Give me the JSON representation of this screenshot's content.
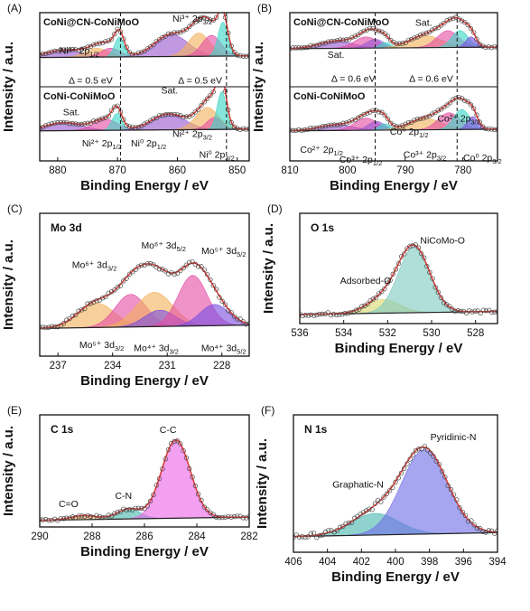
{
  "figure": {
    "ylabel": "Intensity / a.u.",
    "xlabel": "Binding Energy / eV"
  },
  "chart_data": [
    {
      "id": "A",
      "type": "line",
      "panel_label": "(A)",
      "title": "",
      "xlabel": "Binding Energy / eV",
      "ylabel": "Intensity / a.u.",
      "xlim": [
        883,
        848
      ],
      "xticks": [
        880,
        870,
        860,
        850
      ],
      "dashed_x": [
        869.5,
        851.8
      ],
      "subplots": [
        {
          "label": "CoNi@CN-CoNiMoO",
          "baseline": 0.03,
          "noise": 0.018,
          "peaks": [
            {
              "name": "Ni²⁺ 2p1/2 sat",
              "center": 879,
              "height": 0.18,
              "width": 3.0,
              "color": "#9b59d0"
            },
            {
              "name": "Ni³⁺ 2p1/2",
              "center": 873.5,
              "height": 0.22,
              "width": 1.9,
              "color": "#f2b25c"
            },
            {
              "name": "Ni²⁺ 2p1/2",
              "center": 871.2,
              "height": 0.22,
              "width": 1.6,
              "color": "#e34fa4"
            },
            {
              "name": "Ni⁰ 2p1/2",
              "center": 869.7,
              "height": 0.5,
              "width": 0.8,
              "color": "#3dd6c6"
            },
            {
              "name": "Ni²⁺ 2p3/2 sat",
              "center": 861,
              "height": 0.55,
              "width": 2.8,
              "color": "#9b59d0"
            },
            {
              "name": "Ni³⁺ 2p3/2",
              "center": 856.4,
              "height": 0.58,
              "width": 1.8,
              "color": "#f2b25c"
            },
            {
              "name": "Ni²⁺ 2p3/2",
              "center": 854.3,
              "height": 0.52,
              "width": 1.6,
              "color": "#e34fa4"
            },
            {
              "name": "Ni⁰ 2p3/2",
              "center": 852.4,
              "height": 0.85,
              "width": 0.8,
              "color": "#3dd6c6"
            }
          ],
          "annotations": [
            {
              "text": "Ni³⁺ 2p1/2",
              "x": 876.4,
              "y": 0.12
            },
            {
              "text": "Ni³⁺ 2p3/2",
              "x": 857.5,
              "y": 0.92
            },
            {
              "text": "Δ = 0.5 eV",
              "x": 874.5,
              "y": -0.62
            },
            {
              "text": "Δ = 0.5 eV",
              "x": 856.2,
              "y": -0.62
            }
          ]
        },
        {
          "label": "CoNi-CoNiMoO",
          "baseline": 0.05,
          "noise": 0.018,
          "peaks": [
            {
              "name": "Ni²⁺ 2p1/2 sat",
              "center": 879,
              "height": 0.2,
              "width": 3.0,
              "color": "#9b59d0"
            },
            {
              "name": "Ni²⁺ 2p1/2",
              "center": 872,
              "height": 0.28,
              "width": 2.0,
              "color": "#e34fa4"
            },
            {
              "name": "Ni⁰ 2p1/2",
              "center": 870.1,
              "height": 0.42,
              "width": 0.8,
              "color": "#3dd6c6"
            },
            {
              "name": "Ni²⁺ 2p3/2 sat",
              "center": 861.5,
              "height": 0.4,
              "width": 2.8,
              "color": "#9b59d0"
            },
            {
              "name": "Ni²⁺ 2p3/2",
              "center": 855.0,
              "height": 0.55,
              "width": 1.9,
              "color": "#f2b25c"
            },
            {
              "name": "Ni²⁺ 2p3/2 b",
              "center": 853.8,
              "height": 0.3,
              "width": 1.3,
              "color": "#e34fa4"
            },
            {
              "name": "Ni⁰ 2p3/2",
              "center": 852.6,
              "height": 0.95,
              "width": 0.75,
              "color": "#3dd6c6"
            }
          ],
          "annotations": [
            {
              "text": "Sat.",
              "x": 877.7,
              "y": 0.44
            },
            {
              "text": "Sat.",
              "x": 861.3,
              "y": 0.98
            },
            {
              "text": "Ni²⁺ 2p1/2",
              "x": 872.6,
              "y": -0.34
            },
            {
              "text": "Ni⁰ 2p1/2",
              "x": 864.8,
              "y": -0.34
            },
            {
              "text": "Ni²⁺ 2p3/2",
              "x": 857.5,
              "y": -0.1
            },
            {
              "text": "Ni⁰ 2p3/2",
              "x": 853.4,
              "y": -0.62
            }
          ]
        }
      ]
    },
    {
      "id": "B",
      "type": "line",
      "panel_label": "(B)",
      "title": "",
      "xlabel": "Binding Energy / eV",
      "ylabel": "Intensity / a.u.",
      "xlim": [
        810,
        774
      ],
      "xticks": [
        810,
        800,
        790,
        780
      ],
      "dashed_x": [
        795.2,
        781.0
      ],
      "subplots": [
        {
          "label": "CoNi@CN-CoNiMoO",
          "baseline": 0.25,
          "noise": 0.018,
          "peaks": [
            {
              "name": "Sat.",
              "center": 802,
              "height": 0.18,
              "width": 3.0,
              "color": "#9b59d0"
            },
            {
              "name": "Co²⁺ 2p1/2",
              "center": 796.8,
              "height": 0.28,
              "width": 2.0,
              "color": "#e34fa4"
            },
            {
              "name": "Co³⁺ 2p1/2",
              "center": 795.2,
              "height": 0.22,
              "width": 1.5,
              "color": "#9b59d0"
            },
            {
              "name": "Co⁰ 2p1/2",
              "center": 793.4,
              "height": 0.14,
              "width": 0.9,
              "color": "#3dd6c6"
            },
            {
              "name": "Sat.",
              "center": 786.5,
              "height": 0.3,
              "width": 2.8,
              "color": "#f2b25c"
            },
            {
              "name": "Co²⁺ 2p3/2",
              "center": 782.6,
              "height": 0.42,
              "width": 1.9,
              "color": "#e34fa4"
            },
            {
              "name": "Co³⁺ 2p3/2",
              "center": 780.5,
              "height": 0.42,
              "width": 1.4,
              "color": "#3dd6c6"
            },
            {
              "name": "Co⁰ 2p3/2",
              "center": 778.6,
              "height": 0.26,
              "width": 0.9,
              "color": "#7b4fe0"
            }
          ],
          "annotations": [
            {
              "text": "Sat.",
              "x": 802,
              "y": 0.02
            },
            {
              "text": "Sat.",
              "x": 786.8,
              "y": 0.82
            },
            {
              "text": "Δ = 0.6 eV",
              "x": 799,
              "y": -0.58
            },
            {
              "text": "Δ = 0.6 eV",
              "x": 785.5,
              "y": -0.58
            }
          ]
        },
        {
          "label": "CoNi-CoNiMoO",
          "baseline": 0.05,
          "noise": 0.018,
          "peaks": [
            {
              "name": "Sat.",
              "center": 802,
              "height": 0.14,
              "width": 3.0,
              "color": "#9b59d0"
            },
            {
              "name": "Co²⁺ 2p1/2",
              "center": 796.8,
              "height": 0.3,
              "width": 2.0,
              "color": "#e34fa4"
            },
            {
              "name": "Co³⁺ 2p1/2",
              "center": 795.0,
              "height": 0.22,
              "width": 1.4,
              "color": "#9b59d0"
            },
            {
              "name": "Co⁰ 2p1/2",
              "center": 793.6,
              "height": 0.16,
              "width": 0.9,
              "color": "#3dd6c6"
            },
            {
              "name": "Sat.",
              "center": 786.5,
              "height": 0.28,
              "width": 2.8,
              "color": "#f2b25c"
            },
            {
              "name": "Co²⁺ 2p3/2",
              "center": 782.4,
              "height": 0.42,
              "width": 1.9,
              "color": "#e34fa4"
            },
            {
              "name": "Co³⁺ 2p3/2",
              "center": 780.2,
              "height": 0.5,
              "width": 1.4,
              "color": "#3dd6c6"
            },
            {
              "name": "Co⁰ 2p3/2",
              "center": 778.3,
              "height": 0.32,
              "width": 0.9,
              "color": "#7b4fe0"
            }
          ],
          "annotations": [
            {
              "text": "Co²⁺ 2p1/2",
              "x": 804.5,
              "y": -0.5
            },
            {
              "text": "Co³⁺ 2p1/2",
              "x": 797.7,
              "y": -0.75
            },
            {
              "text": "Co⁰ 2p1/2",
              "x": 789.3,
              "y": -0.05
            },
            {
              "text": "Co³⁺ 2p3/2",
              "x": 786.6,
              "y": -0.62
            },
            {
              "text": "Co²⁺ 2p3/2",
              "x": 780.7,
              "y": 0.28
            },
            {
              "text": "Co⁰ 2p3/2",
              "x": 776.6,
              "y": -0.7
            }
          ]
        }
      ]
    },
    {
      "id": "C",
      "type": "line",
      "panel_label": "(C)",
      "title": "Mo 3d",
      "xlabel": "Binding Energy / eV",
      "ylabel": "Intensity / a.u.",
      "xlim": [
        238,
        226.5
      ],
      "xticks": [
        237,
        234,
        231,
        228
      ],
      "ylim": [
        -0.3,
        1.45
      ],
      "baseline": 0.04,
      "noise": 0.02,
      "peaks": [
        {
          "name": "Mo⁶⁺ 3d3/2",
          "center": 234.9,
          "height": 0.3,
          "width": 1.0,
          "color": "#f2b25c"
        },
        {
          "name": "Mo⁵⁺ 3d3/2",
          "center": 233.0,
          "height": 0.4,
          "width": 0.85,
          "color": "#e34fa4"
        },
        {
          "name": "Mo⁶⁺ 3d5/2",
          "center": 231.7,
          "height": 0.42,
          "width": 1.0,
          "color": "#f2b25c"
        },
        {
          "name": "Mo⁴⁺ 3d3/2",
          "center": 231.4,
          "height": 0.2,
          "width": 0.85,
          "color": "#7b4fe0"
        },
        {
          "name": "Mo⁵⁺ 3d5/2",
          "center": 229.6,
          "height": 0.62,
          "width": 0.8,
          "color": "#e34fa4"
        },
        {
          "name": "Mo⁴⁺ 3d5/2",
          "center": 228.4,
          "height": 0.26,
          "width": 0.8,
          "color": "#7b4fe0"
        }
      ],
      "annotations": [
        {
          "text": "Mo⁶⁺ 3d3/2",
          "x": 235.0,
          "y": 0.78
        },
        {
          "text": "Mo⁶⁺ 3d5/2",
          "x": 231.2,
          "y": 1.02
        },
        {
          "text": "Mo⁵⁺ 3d5/2",
          "x": 227.9,
          "y": 0.95
        },
        {
          "text": "Mo⁵⁺ 3d3/2",
          "x": 234.6,
          "y": -0.2
        },
        {
          "text": "Mo⁴⁺ 3d3/2",
          "x": 231.6,
          "y": -0.24
        },
        {
          "text": "Mo⁴⁺ 3d5/2",
          "x": 227.9,
          "y": -0.24
        }
      ]
    },
    {
      "id": "D",
      "type": "line",
      "panel_label": "(D)",
      "title": "O 1s",
      "xlabel": "Binding Energy / eV",
      "ylabel": "Intensity / a.u.",
      "xlim": [
        536,
        527
      ],
      "xticks": [
        536,
        534,
        532,
        530,
        528
      ],
      "ylim": [
        -0.1,
        1.35
      ],
      "baseline": 0.02,
      "noise": 0.02,
      "peaks": [
        {
          "name": "Adsorbed-O",
          "center": 532.2,
          "height": 0.18,
          "width": 0.75,
          "color": "#d8d870"
        },
        {
          "name": "NiCoMo-O",
          "center": 530.8,
          "height": 0.86,
          "width": 0.72,
          "color": "#7fc9c0"
        }
      ],
      "annotations": [
        {
          "text": "Adsorbed-O",
          "x": 533.0,
          "y": 0.42
        },
        {
          "text": "NiCoMo-O",
          "x": 529.5,
          "y": 0.95
        }
      ]
    },
    {
      "id": "E",
      "type": "line",
      "panel_label": "(E)",
      "title": "C 1s",
      "xlabel": "Binding Energy / eV",
      "ylabel": "Intensity / a.u.",
      "xlim": [
        290,
        282
      ],
      "xticks": [
        290,
        288,
        286,
        284,
        282
      ],
      "ylim": [
        -0.06,
        1.3
      ],
      "baseline": 0.02,
      "noise": 0.015,
      "peaks": [
        {
          "name": "C=O",
          "center": 288.3,
          "height": 0.05,
          "width": 0.5,
          "color": "#f2b25c"
        },
        {
          "name": "C-N",
          "center": 286.6,
          "height": 0.12,
          "width": 0.45,
          "color": "#4cb8b0"
        },
        {
          "name": "C-C",
          "center": 284.8,
          "height": 0.95,
          "width": 0.55,
          "color": "#ee66e6"
        }
      ],
      "annotations": [
        {
          "text": "C=O",
          "x": 288.9,
          "y": 0.18
        },
        {
          "text": "C-N",
          "x": 286.8,
          "y": 0.28
        },
        {
          "text": "C-C",
          "x": 285.1,
          "y": 1.08
        }
      ]
    },
    {
      "id": "F",
      "type": "line",
      "panel_label": "(F)",
      "title": "N 1s",
      "xlabel": "Binding Energy / eV",
      "ylabel": "Intensity / a.u.",
      "xlim": [
        406,
        394
      ],
      "xticks": [
        406,
        404,
        402,
        400,
        398,
        396,
        394
      ],
      "ylim": [
        -0.1,
        1.3
      ],
      "baseline": 0.06,
      "noise": 0.025,
      "peaks": [
        {
          "name": "Graphatic-N",
          "center": 401.2,
          "height": 0.22,
          "width": 1.4,
          "color": "#4cb8b0"
        },
        {
          "name": "Pyridinic-N",
          "center": 398.3,
          "height": 0.86,
          "width": 1.35,
          "color": "#7070e6"
        }
      ],
      "annotations": [
        {
          "text": "Graphatic-N",
          "x": 402.2,
          "y": 0.56
        },
        {
          "text": "Pyridinic-N",
          "x": 396.6,
          "y": 1.04
        }
      ]
    }
  ]
}
